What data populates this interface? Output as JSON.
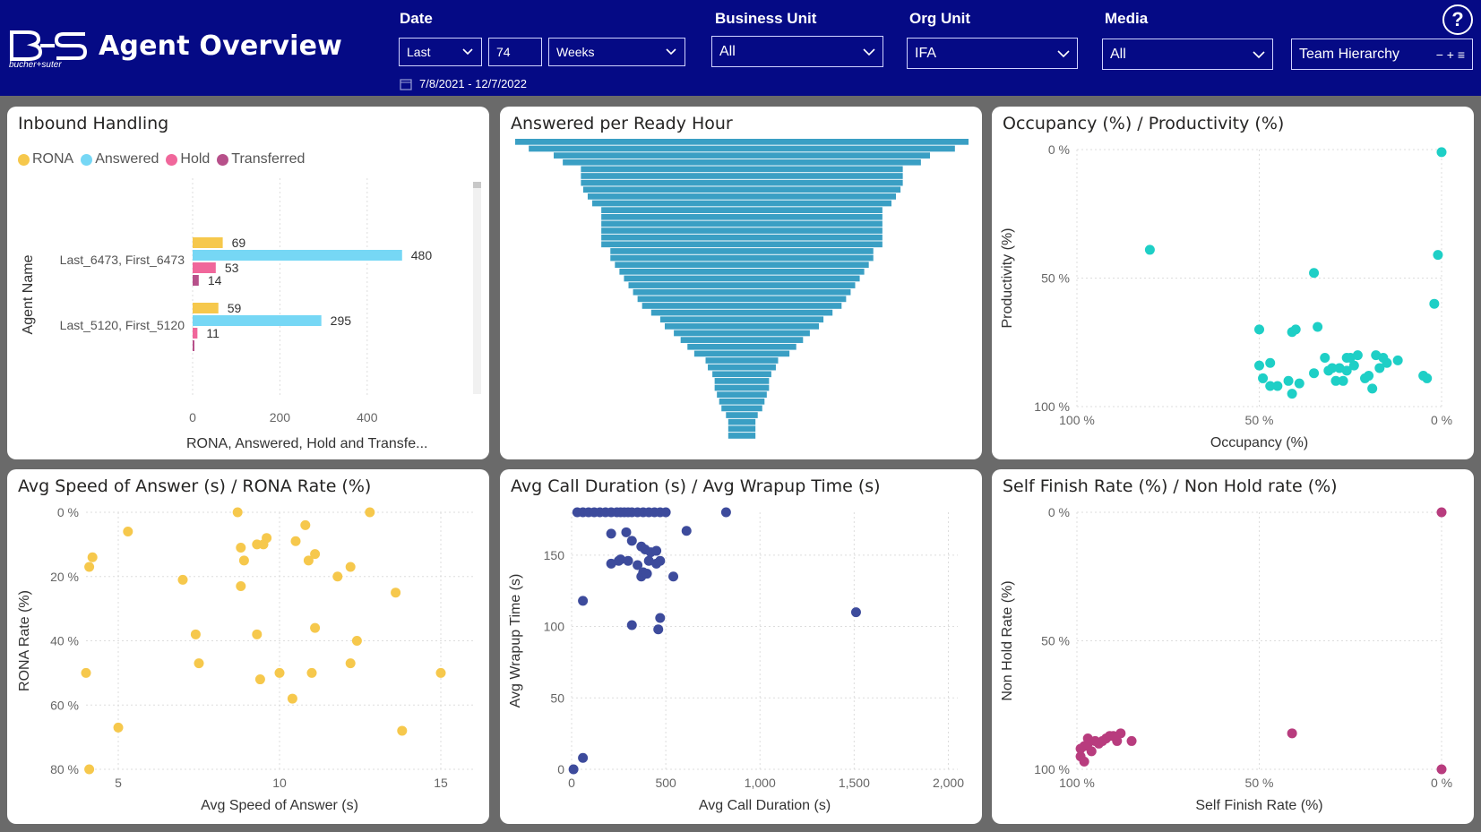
{
  "header": {
    "title": "Agent Overview",
    "logo_text": "bucher+suter",
    "help_label": "?"
  },
  "filters": {
    "date": {
      "label": "Date",
      "period": "Last",
      "count": "74",
      "unit": "Weeks",
      "range": "7/8/2021 - 12/7/2022"
    },
    "business_unit": {
      "label": "Business Unit",
      "value": "All"
    },
    "org_unit": {
      "label": "Org Unit",
      "value": "IFA"
    },
    "media": {
      "label": "Media",
      "value": "All"
    },
    "team_hierarchy": {
      "value": "Team Hierarchy",
      "controls": "− + ≡"
    }
  },
  "colors": {
    "header_bg": "#050a85",
    "rona": "#f6c84c",
    "answered": "#76d7f5",
    "hold": "#f0679b",
    "transferred": "#b7508a",
    "funnel": "#3a9fc4",
    "occupancy": "#1ecfc6",
    "speed": "#f6c84c",
    "duration": "#3d4b9c",
    "selffinish": "#b83c7e"
  },
  "charts": {
    "inbound": {
      "title": "Inbound Handling",
      "legend": [
        "RONA",
        "Answered",
        "Hold",
        "Transferred"
      ],
      "ylabel": "Agent Name",
      "xlabel": "RONA, Answered, Hold and Transfe...",
      "xticks": [
        "0",
        "200",
        "400"
      ]
    },
    "funnel": {
      "title": "Answered per Ready Hour"
    },
    "occupancy": {
      "title": "Occupancy (%) / Productivity (%)",
      "xlabel": "Occupancy (%)",
      "ylabel": "Productivity (%)",
      "xticks": [
        "100 %",
        "50 %",
        "0 %"
      ],
      "yticks": [
        "0 %",
        "50 %",
        "100 %"
      ]
    },
    "speed": {
      "title": "Avg Speed of Answer (s) / RONA Rate (%)",
      "xlabel": "Avg Speed of Answer (s)",
      "ylabel": "RONA Rate (%)",
      "xticks": [
        "5",
        "10",
        "15"
      ],
      "yticks": [
        "80 %",
        "60 %",
        "40 %",
        "20 %",
        "0 %"
      ]
    },
    "duration": {
      "title": "Avg Call Duration (s) / Avg Wrapup Time (s)",
      "xlabel": "Avg Call Duration (s)",
      "ylabel": "Avg Wrapup Time (s)",
      "xticks": [
        "0",
        "500",
        "1,000",
        "1,500",
        "2,000"
      ],
      "yticks": [
        "150",
        "100",
        "50",
        "0"
      ]
    },
    "selffinish": {
      "title": "Self Finish Rate (%) / Non Hold rate (%)",
      "xlabel": "Self Finish Rate (%)",
      "ylabel": "Non Hold Rate (%)",
      "xticks": [
        "100 %",
        "50 %",
        "0 %"
      ],
      "yticks": [
        "0 %",
        "50 %",
        "100 %"
      ]
    }
  },
  "chart_data": [
    {
      "type": "bar",
      "title": "Inbound Handling",
      "orientation": "horizontal",
      "categories": [
        "Last_6473, First_6473",
        "Last_5120, First_5120"
      ],
      "series": [
        {
          "name": "RONA",
          "values": [
            69,
            59
          ]
        },
        {
          "name": "Answered",
          "values": [
            480,
            295
          ]
        },
        {
          "name": "Hold",
          "values": [
            53,
            11
          ]
        },
        {
          "name": "Transferred",
          "values": [
            14,
            0
          ]
        }
      ],
      "value_labels": [
        [
          "69",
          "480",
          "53",
          "14"
        ],
        [
          "59",
          "295",
          "11",
          ""
        ]
      ],
      "xlim": [
        0,
        540
      ],
      "xlabel": "RONA, Answered, Hold and Transfe...",
      "ylabel": "Agent Name"
    },
    {
      "type": "bar",
      "title": "Answered per Ready Hour",
      "orientation": "funnel",
      "values": [
        100,
        94,
        83,
        79,
        71,
        71,
        71,
        70,
        68,
        66,
        62,
        62,
        62,
        62,
        62,
        62,
        58,
        58,
        56,
        54,
        52,
        50,
        48,
        46,
        44,
        40,
        36,
        34,
        30,
        27,
        24,
        21,
        16,
        15,
        13,
        12,
        12,
        11,
        10,
        9,
        7,
        6,
        6,
        6
      ]
    },
    {
      "type": "scatter",
      "title": "Occupancy (%) / Productivity (%)",
      "xlabel": "Occupancy (%)",
      "ylabel": "Productivity (%)",
      "x_reversed": true,
      "y_reversed": true,
      "xlim": [
        100,
        0
      ],
      "ylim": [
        0,
        100
      ],
      "x": [
        0,
        80,
        1,
        2,
        35,
        50,
        41,
        40,
        34,
        47,
        50,
        32,
        30,
        25,
        26,
        24,
        23,
        18,
        15,
        16,
        12,
        4,
        49,
        45,
        47,
        42,
        39,
        35,
        31,
        28,
        26,
        21,
        19,
        5,
        27,
        29,
        41,
        20,
        17
      ],
      "y": [
        1,
        39,
        41,
        60,
        48,
        70,
        71,
        70,
        69,
        83,
        84,
        81,
        85,
        81,
        81,
        84,
        80,
        80,
        83,
        81,
        82,
        89,
        89,
        92,
        92,
        90,
        91,
        87,
        86,
        85,
        86,
        89,
        93,
        88,
        90,
        90,
        95,
        88,
        85
      ]
    },
    {
      "type": "scatter",
      "title": "Avg Speed of Answer (s) / RONA Rate (%)",
      "xlabel": "Avg Speed of Answer (s)",
      "ylabel": "RONA Rate (%)",
      "xlim": [
        4,
        16
      ],
      "ylim": [
        0,
        80
      ],
      "x": [
        4.1,
        5.0,
        4.0,
        13.8,
        15.0,
        10.4,
        9.4,
        10.0,
        11.0,
        7.5,
        12.2,
        9.3,
        7.4,
        11.1,
        12.4,
        13.6,
        7.0,
        8.8,
        11.8,
        12.2,
        4.1,
        4.2,
        8.9,
        10.9,
        11.1,
        5.3,
        8.8,
        9.3,
        9.5,
        9.6,
        10.5,
        10.8,
        8.7,
        12.8
      ],
      "y": [
        80,
        67,
        50,
        68,
        50,
        58,
        52,
        50,
        50,
        47,
        47,
        38,
        38,
        36,
        40,
        25,
        21,
        23,
        20,
        17,
        17,
        14,
        15,
        15,
        13,
        6,
        11,
        10,
        10,
        8,
        9,
        4,
        0,
        0
      ]
    },
    {
      "type": "scatter",
      "title": "Avg Call Duration (s) / Avg Wrapup Time (s)",
      "xlabel": "Avg Call Duration (s)",
      "ylabel": "Avg Wrapup Time (s)",
      "xlim": [
        0,
        2050
      ],
      "ylim": [
        0,
        180
      ],
      "x": [
        30,
        60,
        90,
        120,
        150,
        180,
        210,
        240,
        260,
        280,
        300,
        320,
        350,
        380,
        410,
        440,
        470,
        500,
        820,
        610,
        210,
        290,
        320,
        370,
        390,
        420,
        450,
        260,
        210,
        250,
        300,
        350,
        410,
        470,
        450,
        370,
        380,
        400,
        540,
        60,
        320,
        470,
        460,
        1510,
        60,
        10
      ],
      "y": [
        180,
        180,
        180,
        180,
        180,
        180,
        180,
        180,
        180,
        180,
        180,
        180,
        180,
        180,
        180,
        180,
        180,
        180,
        180,
        167,
        165,
        166,
        160,
        156,
        154,
        152,
        153,
        147,
        144,
        146,
        146,
        143,
        146,
        146,
        144,
        135,
        138,
        137,
        135,
        118,
        101,
        106,
        98,
        110,
        8,
        0
      ]
    },
    {
      "type": "scatter",
      "title": "Self Finish Rate (%) / Non Hold rate (%)",
      "xlabel": "Self Finish Rate (%)",
      "ylabel": "Non Hold Rate (%)",
      "x_reversed": true,
      "y_reversed": true,
      "xlim": [
        100,
        0
      ],
      "ylim": [
        0,
        100
      ],
      "x": [
        0,
        41,
        88,
        90,
        92,
        95,
        97,
        98,
        99,
        96,
        94,
        89,
        93,
        97,
        91,
        99,
        0,
        98,
        85
      ],
      "y": [
        0,
        86,
        86,
        87,
        88,
        89,
        90,
        91,
        92,
        93,
        90,
        89,
        89,
        88,
        87,
        95,
        100,
        97,
        89
      ]
    }
  ]
}
